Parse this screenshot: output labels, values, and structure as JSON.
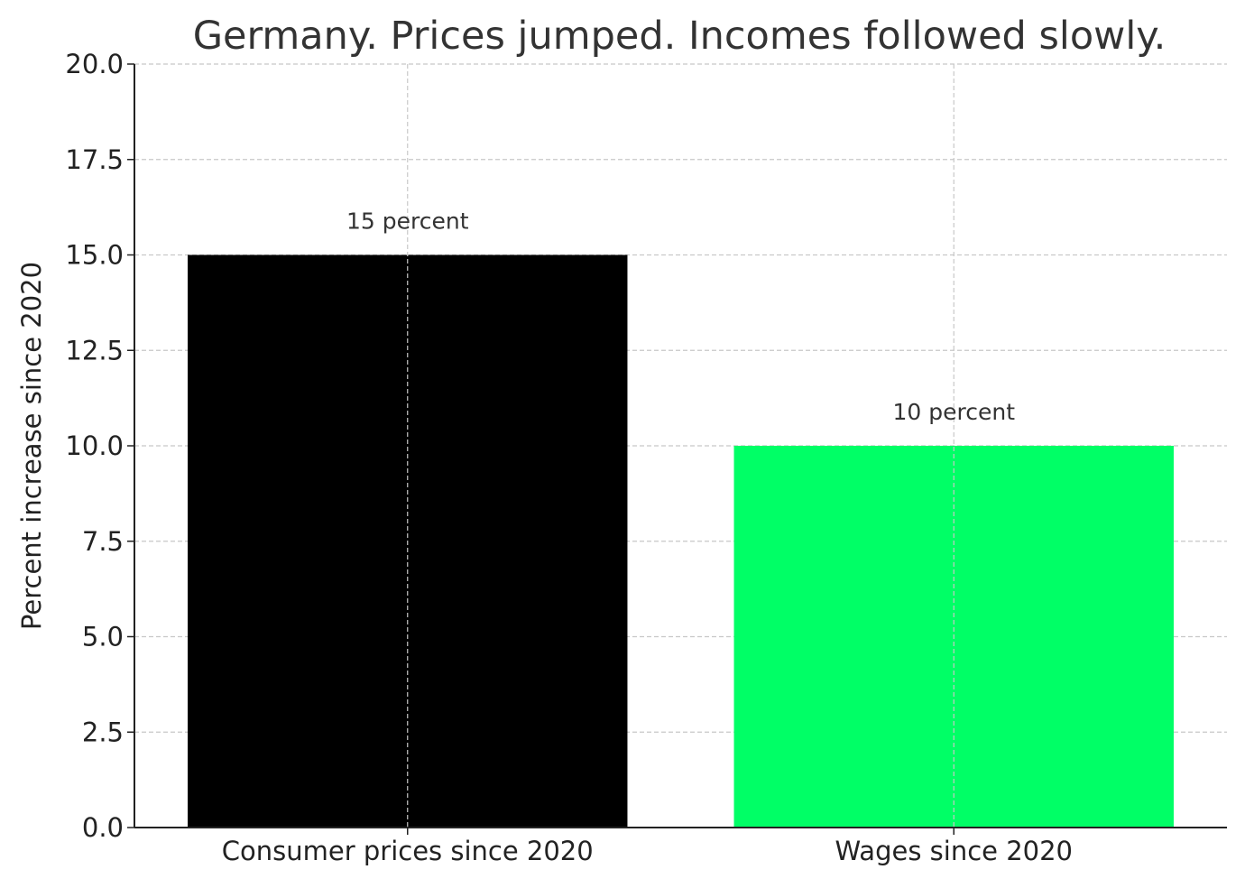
{
  "chart_data": {
    "type": "bar",
    "title": "Germany. Prices jumped. Incomes followed slowly.",
    "xlabel": "",
    "ylabel": "Percent increase since 2020",
    "categories": [
      "Consumer prices since 2020",
      "Wages since 2020"
    ],
    "values": [
      15,
      10
    ],
    "data_labels": [
      "15 percent",
      "10 percent"
    ],
    "colors": [
      "#000000",
      "#00ff66"
    ],
    "ylim": [
      0,
      20
    ],
    "yticks": [
      "0.0",
      "2.5",
      "5.0",
      "7.5",
      "10.0",
      "12.5",
      "15.0",
      "17.5",
      "20.0"
    ],
    "grid": true,
    "legend": "none"
  }
}
